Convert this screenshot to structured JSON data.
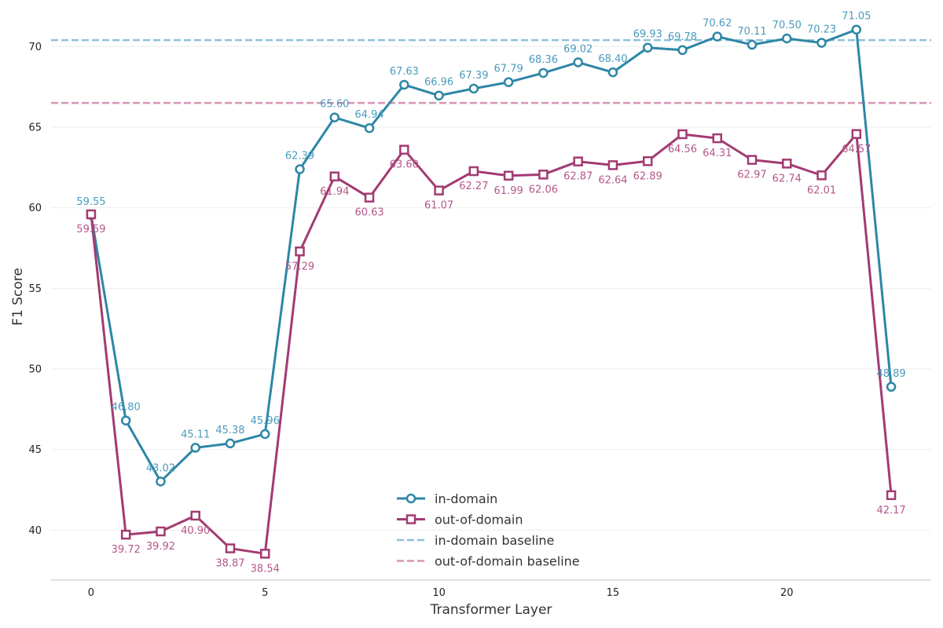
{
  "chart_data": {
    "type": "line",
    "xlabel": "Transformer Layer",
    "ylabel": "F1 Score",
    "x": [
      0,
      1,
      2,
      3,
      4,
      5,
      6,
      7,
      8,
      9,
      10,
      11,
      12,
      13,
      14,
      15,
      16,
      17,
      18,
      19,
      20,
      21,
      22,
      23
    ],
    "xlim": [
      -1.15,
      24.15
    ],
    "ylim": [
      36.9,
      72.4
    ],
    "xticks": [
      0,
      5,
      10,
      15,
      20
    ],
    "yticks": [
      40,
      45,
      50,
      55,
      60,
      65,
      70
    ],
    "grid": true,
    "legend_position": "bottom-center",
    "series": [
      {
        "name": "in-domain",
        "color": "#2e86a6",
        "label_color": "#4a9bbd",
        "marker": "circle",
        "values": [
          59.55,
          46.8,
          43.02,
          45.11,
          45.38,
          45.96,
          62.39,
          65.6,
          64.94,
          67.63,
          66.96,
          67.39,
          67.79,
          68.36,
          69.02,
          68.4,
          69.93,
          69.78,
          70.62,
          70.11,
          70.5,
          70.23,
          71.05,
          48.89
        ],
        "labels": [
          "59.55",
          "46.80",
          "43.02",
          "45.11",
          "45.38",
          "45.96",
          "62.39",
          "65.60",
          "64.94",
          "67.63",
          "66.96",
          "67.39",
          "67.79",
          "68.36",
          "69.02",
          "68.40",
          "69.93",
          "69.78",
          "70.62",
          "70.11",
          "70.50",
          "70.23",
          "71.05",
          "48.89"
        ]
      },
      {
        "name": "out-of-domain",
        "color": "#a23b72",
        "label_color": "#b5578a",
        "marker": "square",
        "values": [
          59.59,
          39.72,
          39.92,
          40.9,
          38.87,
          38.54,
          57.29,
          61.94,
          60.63,
          63.6,
          61.07,
          62.27,
          61.99,
          62.06,
          62.87,
          62.64,
          62.89,
          64.56,
          64.31,
          62.97,
          62.74,
          62.01,
          64.57,
          42.17
        ],
        "labels": [
          "59.59",
          "39.72",
          "39.92",
          "40.90",
          "38.87",
          "38.54",
          "57.29",
          "61.94",
          "60.63",
          "63.60",
          "61.07",
          "62.27",
          "61.99",
          "62.06",
          "62.87",
          "62.64",
          "62.89",
          "64.56",
          "64.31",
          "62.97",
          "62.74",
          "62.01",
          "64.57",
          "42.17"
        ]
      }
    ],
    "baselines": [
      {
        "name": "in-domain baseline",
        "value": 70.4,
        "color": "#8ec0dc"
      },
      {
        "name": "out-of-domain baseline",
        "value": 66.5,
        "color": "#d894b4"
      }
    ]
  }
}
